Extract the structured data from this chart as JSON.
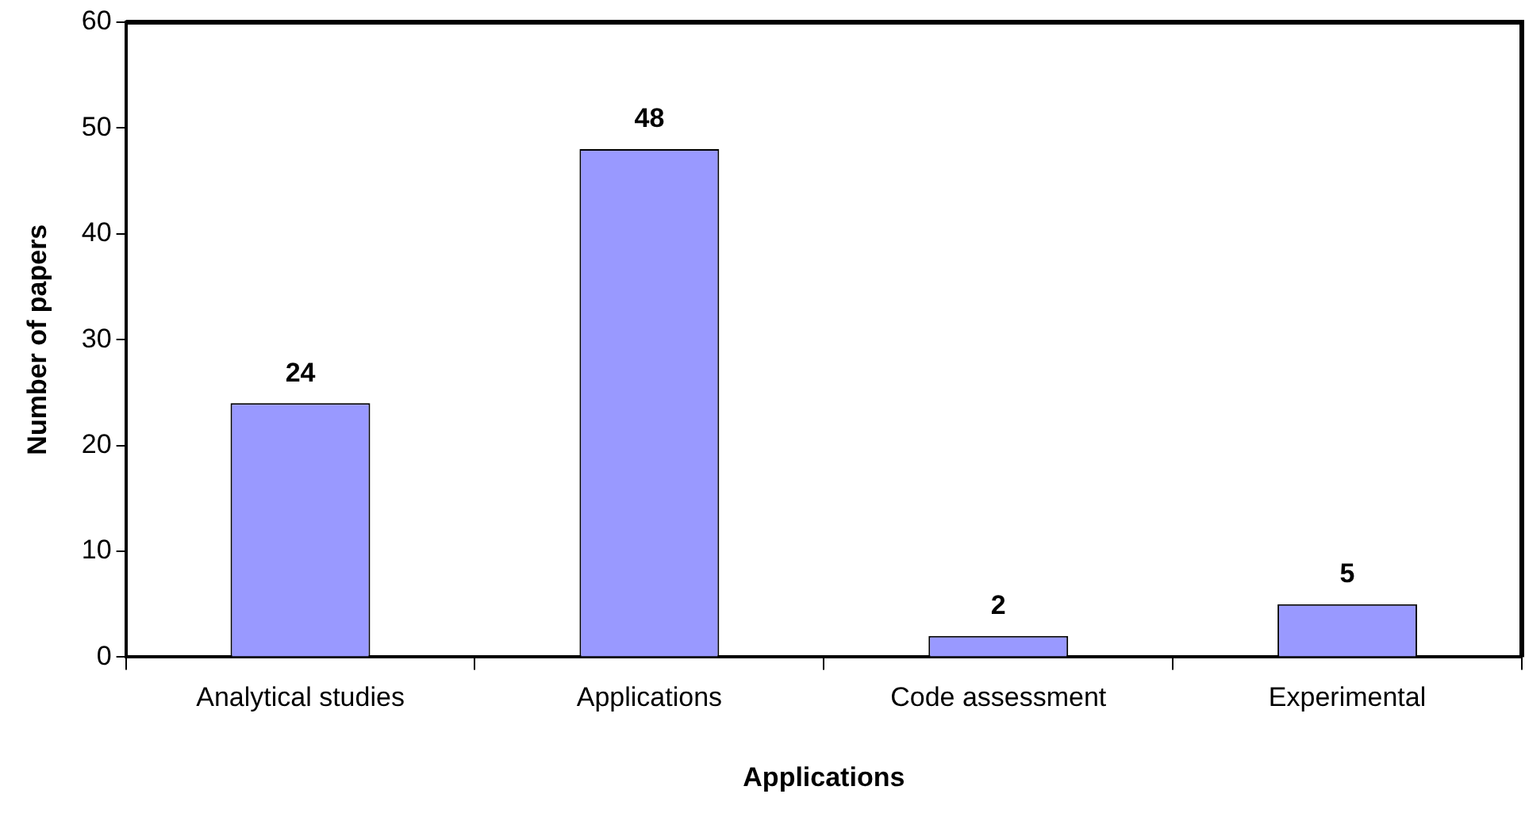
{
  "chart_data": {
    "type": "bar",
    "xlabel": "Applications",
    "ylabel": "Number of papers",
    "categories": [
      "Analytical studies",
      "Applications",
      "Code assessment",
      "Experimental"
    ],
    "values": [
      24,
      48,
      2,
      5
    ],
    "color": "#9999ff",
    "ylim": [
      0,
      60
    ],
    "yticks": [
      0,
      10,
      20,
      30,
      40,
      50,
      60
    ],
    "grid": false,
    "legend": false,
    "data_labels": true
  }
}
